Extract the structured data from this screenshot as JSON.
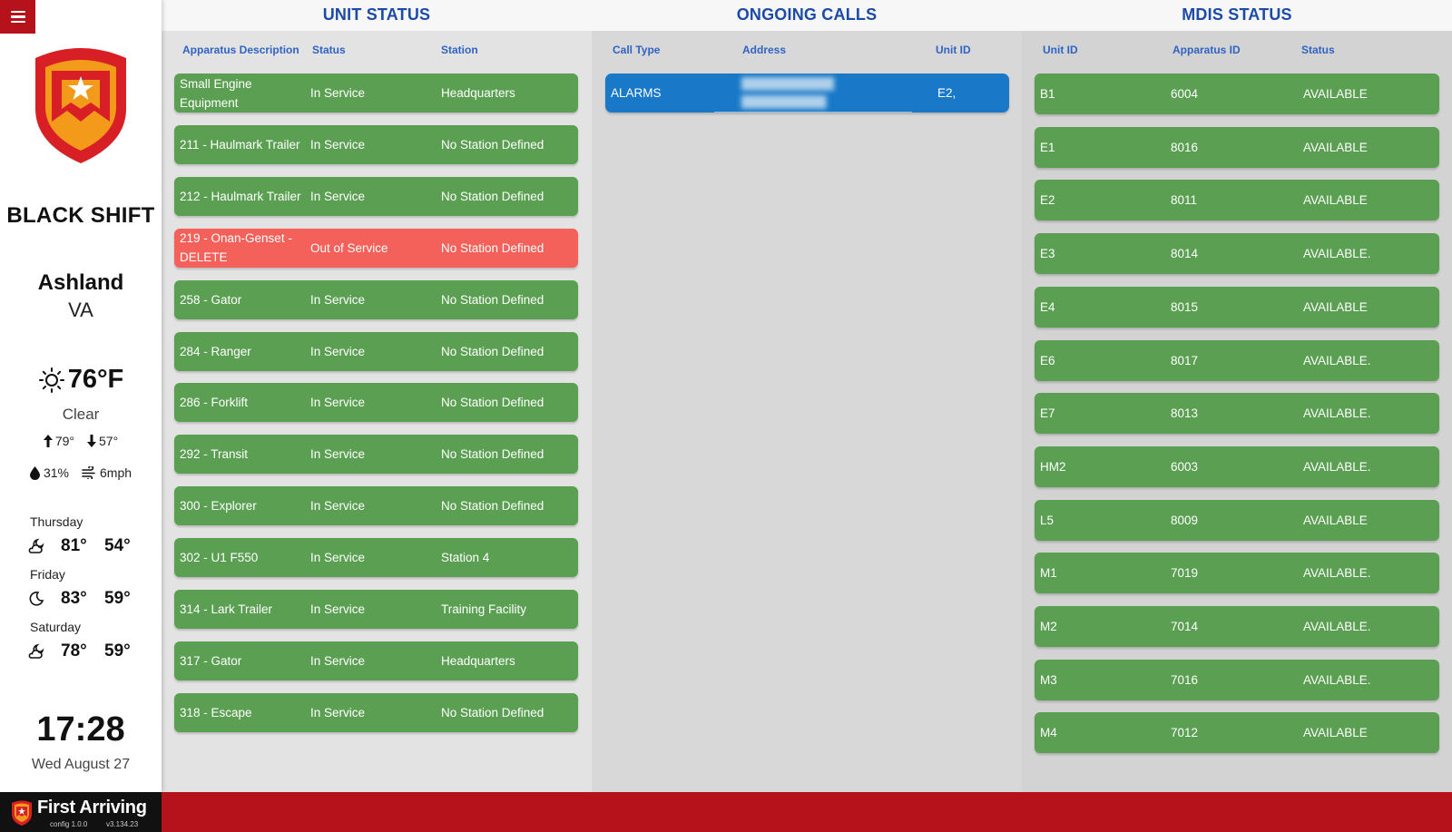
{
  "sidebar": {
    "shift": "BLACK SHIFT",
    "city": "Ashland",
    "state": "VA",
    "weather": {
      "temp": "76°F",
      "condition": "Clear",
      "high": "79°",
      "low": "57°",
      "humidity": "31%",
      "wind": "6mph"
    },
    "forecast": [
      {
        "day": "Thursday",
        "hi": "81°",
        "lo": "54°",
        "icon": "partly-cloudy-night-icon"
      },
      {
        "day": "Friday",
        "hi": "83°",
        "lo": "59°",
        "icon": "moon-icon"
      },
      {
        "day": "Saturday",
        "hi": "78°",
        "lo": "59°",
        "icon": "partly-cloudy-night-icon"
      }
    ],
    "time": "17:28",
    "date": "Wed August 27"
  },
  "brand": {
    "name": "First Arriving",
    "config": "config 1.0.0",
    "version": "v3.134.23"
  },
  "colors": {
    "red": "#b5121b",
    "green": "#5b9f52",
    "out_of_service": "#f4615a",
    "call_blue": "#1979c8",
    "header_blue": "#1c4aa8"
  },
  "unit_status": {
    "title": "UNIT STATUS",
    "headers": [
      "Apparatus Description",
      "Status",
      "Station"
    ],
    "rows": [
      {
        "desc": "Small Engine Equipment",
        "status": "In Service",
        "station": "Headquarters",
        "state": "green"
      },
      {
        "desc": "211 - Haulmark Trailer",
        "status": "In Service",
        "station": "No Station Defined",
        "state": "green"
      },
      {
        "desc": "212 - Haulmark Trailer",
        "status": "In Service",
        "station": "No Station Defined",
        "state": "green"
      },
      {
        "desc": "219 - Onan-Genset - DELETE",
        "status": "Out of Service",
        "station": "No Station Defined",
        "state": "red"
      },
      {
        "desc": "258 - Gator",
        "status": "In Service",
        "station": "No Station Defined",
        "state": "green"
      },
      {
        "desc": "284 - Ranger",
        "status": "In Service",
        "station": "No Station Defined",
        "state": "green"
      },
      {
        "desc": "286 - Forklift",
        "status": "In Service",
        "station": "No Station Defined",
        "state": "green"
      },
      {
        "desc": "292 - Transit",
        "status": "In Service",
        "station": "No Station Defined",
        "state": "green"
      },
      {
        "desc": "300 - Explorer",
        "status": "In Service",
        "station": "No Station Defined",
        "state": "green"
      },
      {
        "desc": "302 - U1 F550",
        "status": "In Service",
        "station": "Station 4",
        "state": "green"
      },
      {
        "desc": "314 - Lark Trailer",
        "status": "In Service",
        "station": "Training Facility",
        "state": "green"
      },
      {
        "desc": "317 - Gator",
        "status": "In Service",
        "station": "Headquarters",
        "state": "green"
      },
      {
        "desc": "318 - Escape",
        "status": "In Service",
        "station": "No Station Defined",
        "state": "green"
      }
    ]
  },
  "ongoing_calls": {
    "title": "ONGOING CALLS",
    "headers": [
      "Call Type",
      "Address",
      "Unit ID"
    ],
    "rows": [
      {
        "type": "ALARMS",
        "unit": "E2,"
      }
    ]
  },
  "mdis_status": {
    "title": "MDIS STATUS",
    "headers": [
      "Unit ID",
      "Apparatus ID",
      "Status"
    ],
    "rows": [
      {
        "unit": "B1",
        "apparatus": "6004",
        "status": "AVAILABLE"
      },
      {
        "unit": "E1",
        "apparatus": "8016",
        "status": "AVAILABLE"
      },
      {
        "unit": "E2",
        "apparatus": "8011",
        "status": "AVAILABLE"
      },
      {
        "unit": "E3",
        "apparatus": "8014",
        "status": "AVAILABLE."
      },
      {
        "unit": "E4",
        "apparatus": "8015",
        "status": "AVAILABLE"
      },
      {
        "unit": "E6",
        "apparatus": "8017",
        "status": "AVAILABLE."
      },
      {
        "unit": "E7",
        "apparatus": "8013",
        "status": "AVAILABLE."
      },
      {
        "unit": "HM2",
        "apparatus": "6003",
        "status": "AVAILABLE."
      },
      {
        "unit": "L5",
        "apparatus": "8009",
        "status": "AVAILABLE"
      },
      {
        "unit": "M1",
        "apparatus": "7019",
        "status": "AVAILABLE."
      },
      {
        "unit": "M2",
        "apparatus": "7014",
        "status": "AVAILABLE."
      },
      {
        "unit": "M3",
        "apparatus": "7016",
        "status": "AVAILABLE."
      },
      {
        "unit": "M4",
        "apparatus": "7012",
        "status": "AVAILABLE"
      }
    ]
  }
}
